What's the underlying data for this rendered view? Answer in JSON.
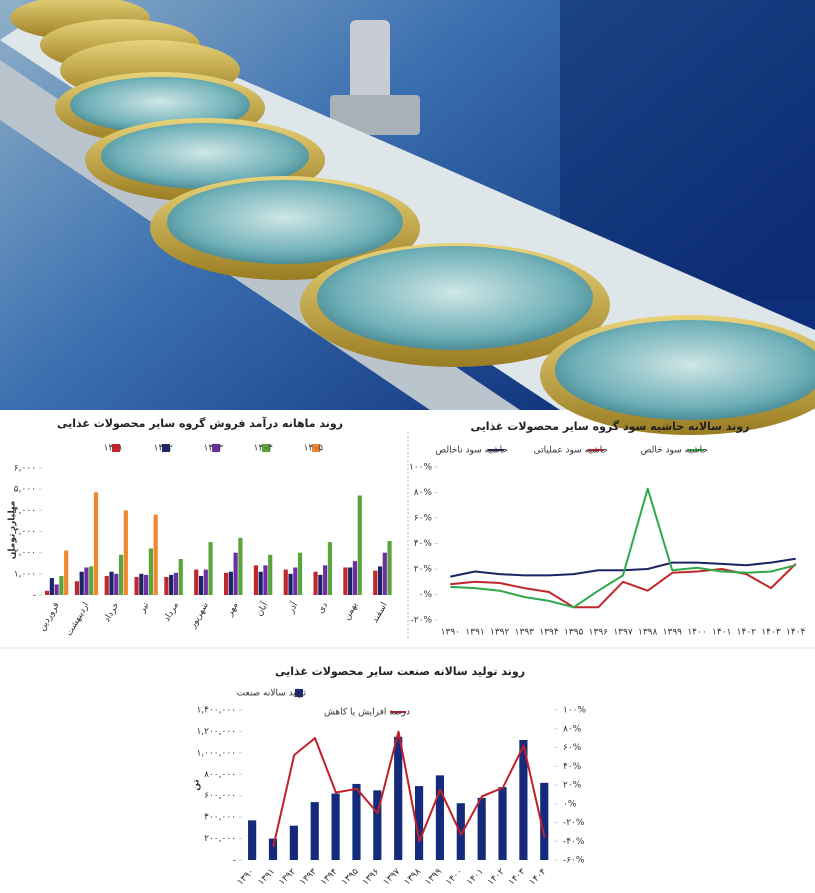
{
  "chart_data": [
    {
      "type": "bar",
      "title": "روند ماهانه درآمد فروش گروه سایر محصولات غذایی",
      "y_label": "میلیارد تومان",
      "categories": [
        "فروردین",
        "اردیبهشت",
        "خرداد",
        "تیر",
        "مرداد",
        "شهریور",
        "مهر",
        "آبان",
        "آذر",
        "دی",
        "بهمن",
        "اسفند"
      ],
      "series": [
        {
          "name": "۱۴۰۱",
          "color": "#c0272d",
          "values": [
            200,
            650,
            900,
            850,
            850,
            1200,
            1050,
            1400,
            1200,
            1100,
            1300,
            1150
          ]
        },
        {
          "name": "۱۴۰۲",
          "color": "#1a2466",
          "values": [
            800,
            1100,
            1100,
            1000,
            950,
            900,
            1100,
            1100,
            1000,
            950,
            1300,
            1350
          ]
        },
        {
          "name": "۱۴۰۳",
          "color": "#6b2fa3",
          "values": [
            500,
            1300,
            1000,
            950,
            1050,
            1200,
            2000,
            1400,
            1300,
            1400,
            1600,
            2000
          ]
        },
        {
          "name": "۱۴۰۴",
          "color": "#5ba33b",
          "values": [
            900,
            1350,
            1900,
            2200,
            1700,
            2500,
            2700,
            1900,
            2000,
            2500,
            4700,
            2550
          ]
        },
        {
          "name": "۱۴۰۵",
          "color": "#f0862e",
          "values": [
            2100,
            4850,
            4000,
            3800,
            null,
            null,
            null,
            null,
            null,
            null,
            null,
            null
          ]
        }
      ],
      "ylim": [
        0,
        6000
      ],
      "yticks": [
        {
          "value": 0,
          "label": "-"
        },
        {
          "value": 1000,
          "label": "۱,۰۰۰"
        },
        {
          "value": 2000,
          "label": "۲,۰۰۰"
        },
        {
          "value": 3000,
          "label": "۳,۰۰۰"
        },
        {
          "value": 4000,
          "label": "۴,۰۰۰"
        },
        {
          "value": 5000,
          "label": "۵,۰۰۰"
        },
        {
          "value": 6000,
          "label": "۶,۰۰۰"
        }
      ],
      "grid": false
    },
    {
      "type": "line",
      "title": "روند سالانه حاشیه سود گروه سایر محصولات غذایی",
      "categories": [
        "۱۳۹۰",
        "۱۳۹۱",
        "۱۳۹۲",
        "۱۳۹۳",
        "۱۳۹۴",
        "۱۳۹۵",
        "۱۳۹۶",
        "۱۳۹۷",
        "۱۳۹۸",
        "۱۳۹۹",
        "۱۴۰۰",
        "۱۴۰۱",
        "۱۴۰۲",
        "۱۴۰۳",
        "۱۴۰۴"
      ],
      "series": [
        {
          "name": "حاشیه سود ناخالص",
          "color": "#1a2466",
          "values": [
            14,
            18,
            16,
            15,
            15,
            16,
            19,
            19,
            20,
            25,
            25,
            24,
            23,
            25,
            28
          ]
        },
        {
          "name": "حاشیه سود عملیاتی",
          "color": "#c0272d",
          "values": [
            8,
            10,
            9,
            5,
            2,
            -10,
            -10,
            10,
            3,
            17,
            18,
            20,
            16,
            5,
            24
          ]
        },
        {
          "name": "حاشیه سود خالص",
          "color": "#2eaa4a",
          "values": [
            6,
            5,
            3,
            -2,
            -5,
            -10,
            3,
            15,
            83,
            19,
            21,
            18,
            17,
            18,
            23
          ]
        }
      ],
      "ylim": [
        -20,
        100
      ],
      "yticks": [
        {
          "value": -20,
          "label": "-۲۰%"
        },
        {
          "value": 0,
          "label": "۰%"
        },
        {
          "value": 20,
          "label": "۲۰%"
        },
        {
          "value": 40,
          "label": "۴۰%"
        },
        {
          "value": 60,
          "label": "۶۰%"
        },
        {
          "value": 80,
          "label": "۸۰%"
        },
        {
          "value": 100,
          "label": "۱۰۰%"
        }
      ],
      "grid": false
    },
    {
      "type": "combo",
      "title": "روند تولید سالانه صنعت سایر محصولات غذایی",
      "y_label": "تن",
      "categories": [
        "۱۳۹۰",
        "۱۳۹۱",
        "۱۳۹۲",
        "۱۳۹۳",
        "۱۳۹۴",
        "۱۳۹۵",
        "۱۳۹۶",
        "۱۳۹۷",
        "۱۳۹۸",
        "۱۳۹۹",
        "۱۴۰۰",
        "۱۴۰۱",
        "۱۴۰۲",
        "۱۴۰۳",
        "۱۴۰۴"
      ],
      "series": [
        {
          "name": "تولید سالانه صنعت",
          "color": "#142a7a",
          "values": [
            370000,
            200000,
            320000,
            540000,
            620000,
            710000,
            650000,
            1150000,
            690000,
            790000,
            530000,
            580000,
            680000,
            1120000,
            720000
          ]
        },
        {
          "name": "درصد افزایش یا کاهش",
          "color": "#c0202a",
          "axis": "y2",
          "values": [
            null,
            -46,
            52,
            70,
            12,
            16,
            -10,
            77,
            -40,
            15,
            -33,
            8,
            17,
            62,
            -36
          ]
        }
      ],
      "ylim": [
        0,
        1400000
      ],
      "yticks": [
        {
          "value": 0,
          "label": "-"
        },
        {
          "value": 200000,
          "label": "۲۰۰,۰۰۰"
        },
        {
          "value": 400000,
          "label": "۴۰۰,۰۰۰"
        },
        {
          "value": 600000,
          "label": "۶۰۰,۰۰۰"
        },
        {
          "value": 800000,
          "label": "۸۰۰,۰۰۰"
        },
        {
          "value": 1000000,
          "label": "۱,۰۰۰,۰۰۰"
        },
        {
          "value": 1200000,
          "label": "۱,۲۰۰,۰۰۰"
        },
        {
          "value": 1400000,
          "label": "۱,۴۰۰,۰۰۰"
        }
      ],
      "y2lim": [
        -60,
        100
      ],
      "y2ticks": [
        {
          "value": -60,
          "label": "-۶۰%"
        },
        {
          "value": -40,
          "label": "-۴۰%"
        },
        {
          "value": -20,
          "label": "-۲۰%"
        },
        {
          "value": 0,
          "label": "۰%"
        },
        {
          "value": 20,
          "label": "۲۰%"
        },
        {
          "value": 40,
          "label": "۴۰%"
        },
        {
          "value": 60,
          "label": "۶۰%"
        },
        {
          "value": 80,
          "label": "۸۰%"
        },
        {
          "value": 100,
          "label": "۱۰۰%"
        }
      ],
      "grid": false
    }
  ]
}
